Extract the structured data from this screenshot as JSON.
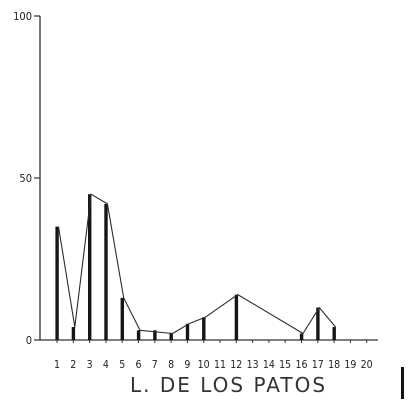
{
  "chart_data": {
    "type": "bar",
    "title": "L. DE LOS PATOS",
    "xlabel": "",
    "ylabel": "",
    "ylim": [
      0,
      100
    ],
    "yticks": [
      "100",
      "50",
      "0"
    ],
    "ytick_values": [
      100,
      50,
      0
    ],
    "categories": [
      "1",
      "2",
      "3",
      "4",
      "5",
      "6",
      "7",
      "8",
      "9",
      "10",
      "11",
      "12",
      "13",
      "14",
      "15",
      "16",
      "17",
      "18",
      "19",
      "20"
    ],
    "values": [
      35,
      4,
      45,
      42,
      13,
      3,
      3,
      2,
      5,
      7,
      0,
      14,
      0,
      0,
      0,
      2,
      10,
      4,
      0,
      0
    ],
    "series": [
      {
        "name": "",
        "style": "bars",
        "values": [
          35,
          4,
          45,
          42,
          13,
          3,
          3,
          2,
          5,
          7,
          0,
          14,
          0,
          0,
          0,
          2,
          10,
          4,
          0,
          0
        ]
      },
      {
        "name": "",
        "style": "line",
        "values": [
          35,
          4,
          45,
          42,
          13,
          3,
          null,
          2,
          5,
          7,
          null,
          14,
          null,
          null,
          null,
          2,
          10,
          4,
          null,
          null
        ]
      }
    ],
    "grid": false,
    "colors": {
      "bar": "#151515",
      "line": "#2b2b2b",
      "axis": "#333333"
    }
  }
}
